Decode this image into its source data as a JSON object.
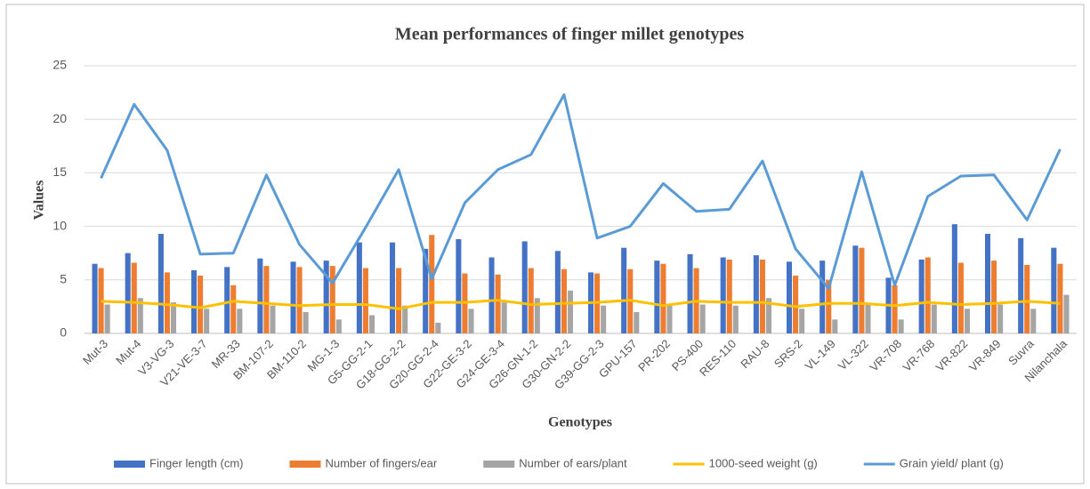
{
  "chart_data": {
    "type": "bar",
    "title": "Mean performances of finger millet genotypes",
    "x_label": "Genotypes",
    "y_label": "Values",
    "categories": [
      "Mut-3",
      "Mut-4",
      "V3-VG-3",
      "V21-VE-3-7",
      "MR-33",
      "BM-107-2",
      "BM-110-2",
      "MG-1-3",
      "G5-GG-2-1",
      "G18-GG-2-2",
      "G20-GG-2-4",
      "G22-GE-3-2",
      "G24-GE-3-4",
      "G26-GN-1-2",
      "G30-GN-2-2",
      "G39-GG-2-3",
      "GPU-157",
      "PR-202",
      "PS-400",
      "RES-110",
      "RAU-8",
      "SRS-2",
      "VL-149",
      "VL-322",
      "VR-708",
      "VR-768",
      "VR-822",
      "VR-849",
      "Suvra",
      "Nilanchala"
    ],
    "series": [
      {
        "name": "Finger length (cm)",
        "type": "bar",
        "color": "#4472c4",
        "values": [
          6.5,
          7.5,
          9.3,
          5.9,
          6.2,
          7.0,
          6.7,
          6.8,
          8.5,
          8.5,
          7.9,
          8.8,
          7.1,
          8.6,
          7.7,
          5.7,
          8.0,
          6.8,
          7.4,
          7.1,
          7.3,
          6.7,
          6.8,
          8.2,
          5.2,
          6.9,
          10.2,
          9.3,
          8.9,
          8.0
        ]
      },
      {
        "name": "Number of fingers/ear",
        "type": "bar",
        "color": "#ed7d31",
        "values": [
          6.1,
          6.6,
          5.7,
          5.4,
          4.5,
          6.3,
          6.2,
          6.3,
          6.1,
          6.1,
          9.2,
          5.6,
          5.5,
          6.1,
          6.0,
          5.6,
          6.0,
          6.5,
          6.1,
          6.9,
          6.9,
          5.4,
          5.0,
          8.0,
          4.5,
          7.1,
          6.6,
          6.8,
          6.4,
          6.5
        ]
      },
      {
        "name": "Number of ears/plant",
        "type": "bar",
        "color": "#a5a5a5",
        "values": [
          2.7,
          3.3,
          2.9,
          2.3,
          2.3,
          2.6,
          2.0,
          1.3,
          1.7,
          2.6,
          1.0,
          2.3,
          2.9,
          3.3,
          4.0,
          2.6,
          2.0,
          2.6,
          2.7,
          2.6,
          3.3,
          2.3,
          1.3,
          2.7,
          1.3,
          2.7,
          2.3,
          2.7,
          2.3,
          3.6
        ]
      },
      {
        "name": "1000-seed weight (g)",
        "type": "line",
        "color": "#ffc000",
        "values": [
          3.0,
          2.9,
          2.7,
          2.4,
          3.0,
          2.8,
          2.6,
          2.7,
          2.7,
          2.3,
          2.9,
          2.9,
          3.1,
          2.7,
          2.8,
          2.9,
          3.1,
          2.6,
          3.0,
          2.9,
          2.9,
          2.5,
          2.8,
          2.8,
          2.6,
          2.9,
          2.7,
          2.8,
          3.0,
          2.8
        ]
      },
      {
        "name": "Grain yield/ plant (g)",
        "type": "line",
        "color": "#5b9bd5",
        "values": [
          14.5,
          21.4,
          17.1,
          7.4,
          7.5,
          14.8,
          8.3,
          4.7,
          9.9,
          15.3,
          5.1,
          12.2,
          15.3,
          16.7,
          22.3,
          8.9,
          10.0,
          14.0,
          11.4,
          11.6,
          16.1,
          7.9,
          4.2,
          15.1,
          4.5,
          12.8,
          14.7,
          14.8,
          10.6,
          17.2
        ]
      }
    ],
    "ylim": [
      0,
      25
    ],
    "yticks": [
      0,
      5,
      10,
      15,
      20,
      25
    ],
    "grid": true,
    "legend": "bottom"
  }
}
